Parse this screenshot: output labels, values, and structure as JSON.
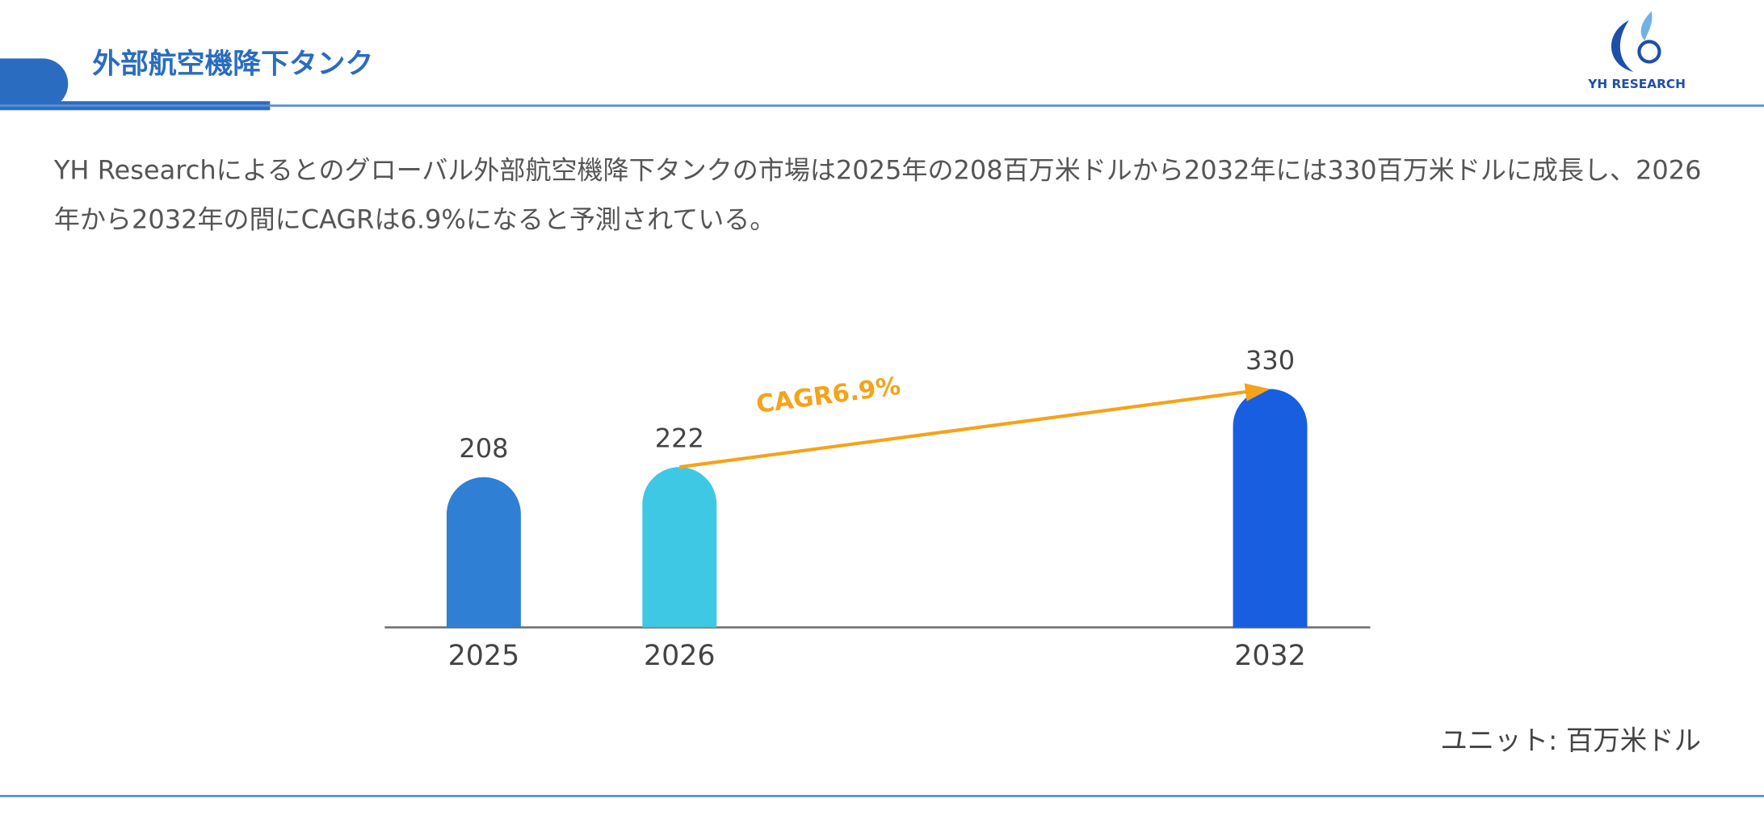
{
  "header": {
    "title": "外部航空機降下タンク",
    "logo": "YH RESEARCH"
  },
  "description": "YH Researchによるとのグローバル外部航空機降下タンクの市場は2025年の208百万米ドルから2032年には330百万米ドルに成長し、2026年から2032年の間にCAGRは6.9%になると予測されている。",
  "chart_data": {
    "type": "bar",
    "categories": [
      "2025",
      "2026",
      "2032"
    ],
    "values": [
      208,
      222,
      330
    ],
    "colors": [
      "#2f7fd4",
      "#3ec8e4",
      "#175ee0"
    ],
    "annotation": "CAGR6.9%",
    "annotation_color": "#f5a31a",
    "unit": "ユニット: 百万米ドル"
  }
}
